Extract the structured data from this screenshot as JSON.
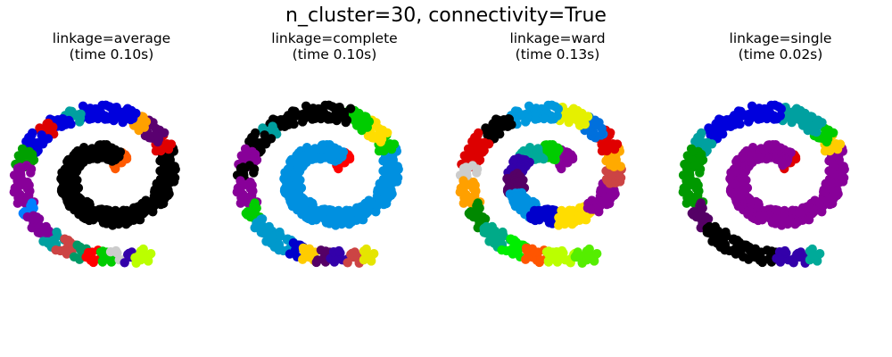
{
  "title": "n_cluster=30, connectivity=True",
  "chart_data": [
    {
      "type": "scatter",
      "title_line1": "linkage=average",
      "title_line2": "(time 0.10s)",
      "segments": [
        {
          "color": "#ff5a00",
          "t": [
            0.0,
            0.03
          ]
        },
        {
          "color": "#000000",
          "t": [
            0.03,
            0.56
          ]
        },
        {
          "color": "#e00000",
          "t": [
            0.56,
            0.58
          ]
        },
        {
          "color": "#5a0070",
          "t": [
            0.58,
            0.61
          ]
        },
        {
          "color": "#ffa000",
          "t": [
            0.61,
            0.63
          ]
        },
        {
          "color": "#0000dd",
          "t": [
            0.63,
            0.7
          ]
        },
        {
          "color": "#00a0a0",
          "t": [
            0.7,
            0.715
          ]
        },
        {
          "color": "#0000dd",
          "t": [
            0.715,
            0.735
          ]
        },
        {
          "color": "#dd0000",
          "t": [
            0.735,
            0.755
          ]
        },
        {
          "color": "#0000dd",
          "t": [
            0.755,
            0.78
          ]
        },
        {
          "color": "#00a000",
          "t": [
            0.78,
            0.8
          ]
        },
        {
          "color": "#880099",
          "t": [
            0.8,
            0.85
          ]
        },
        {
          "color": "#0080ff",
          "t": [
            0.85,
            0.865
          ]
        },
        {
          "color": "#800099",
          "t": [
            0.865,
            0.895
          ]
        },
        {
          "color": "#00a0a0",
          "t": [
            0.895,
            0.91
          ]
        },
        {
          "color": "#cc4444",
          "t": [
            0.91,
            0.925
          ]
        },
        {
          "color": "#009966",
          "t": [
            0.925,
            0.94
          ]
        },
        {
          "color": "#ff0000",
          "t": [
            0.94,
            0.95
          ]
        },
        {
          "color": "#00cc00",
          "t": [
            0.95,
            0.965
          ]
        },
        {
          "color": "#cccccc",
          "t": [
            0.965,
            0.975
          ]
        },
        {
          "color": "#3300aa",
          "t": [
            0.975,
            0.985
          ]
        },
        {
          "color": "#bbff00",
          "t": [
            0.985,
            1.0
          ]
        }
      ]
    },
    {
      "type": "scatter",
      "title_line1": "linkage=complete",
      "title_line2": "(time 0.10s)",
      "segments": [
        {
          "color": "#ff0000",
          "t": [
            0.0,
            0.03
          ]
        },
        {
          "color": "#0090e0",
          "t": [
            0.03,
            0.56
          ]
        },
        {
          "color": "#00cc00",
          "t": [
            0.56,
            0.58
          ]
        },
        {
          "color": "#ffdd00",
          "t": [
            0.58,
            0.61
          ]
        },
        {
          "color": "#00cc00",
          "t": [
            0.61,
            0.64
          ]
        },
        {
          "color": "#000000",
          "t": [
            0.64,
            0.74
          ]
        },
        {
          "color": "#00a0a0",
          "t": [
            0.74,
            0.755
          ]
        },
        {
          "color": "#000000",
          "t": [
            0.755,
            0.78
          ]
        },
        {
          "color": "#880099",
          "t": [
            0.78,
            0.8
          ]
        },
        {
          "color": "#000000",
          "t": [
            0.8,
            0.82
          ]
        },
        {
          "color": "#880099",
          "t": [
            0.82,
            0.85
          ]
        },
        {
          "color": "#00cc00",
          "t": [
            0.85,
            0.87
          ]
        },
        {
          "color": "#0099cc",
          "t": [
            0.87,
            0.92
          ]
        },
        {
          "color": "#0000cc",
          "t": [
            0.92,
            0.93
          ]
        },
        {
          "color": "#ffcc00",
          "t": [
            0.93,
            0.945
          ]
        },
        {
          "color": "#550066",
          "t": [
            0.945,
            0.96
          ]
        },
        {
          "color": "#3300aa",
          "t": [
            0.96,
            0.975
          ]
        },
        {
          "color": "#cc4444",
          "t": [
            0.975,
            0.99
          ]
        },
        {
          "color": "#e5e500",
          "t": [
            0.99,
            1.0
          ]
        }
      ]
    },
    {
      "type": "scatter",
      "title_line1": "linkage=ward",
      "title_line2": "(time 0.13s)",
      "segments": [
        {
          "color": "#880099",
          "t": [
            0.0,
            0.06
          ]
        },
        {
          "color": "#00cc00",
          "t": [
            0.06,
            0.12
          ]
        },
        {
          "color": "#00aa99",
          "t": [
            0.12,
            0.17
          ]
        },
        {
          "color": "#3300aa",
          "t": [
            0.17,
            0.22
          ]
        },
        {
          "color": "#550066",
          "t": [
            0.22,
            0.27
          ]
        },
        {
          "color": "#0090e0",
          "t": [
            0.27,
            0.33
          ]
        },
        {
          "color": "#0000cc",
          "t": [
            0.33,
            0.38
          ]
        },
        {
          "color": "#ffdd00",
          "t": [
            0.38,
            0.44
          ]
        },
        {
          "color": "#880099",
          "t": [
            0.44,
            0.5
          ]
        },
        {
          "color": "#cc4444",
          "t": [
            0.5,
            0.53
          ]
        },
        {
          "color": "#ffaa00",
          "t": [
            0.53,
            0.56
          ]
        },
        {
          "color": "#e00000",
          "t": [
            0.56,
            0.59
          ]
        },
        {
          "color": "#0070dd",
          "t": [
            0.59,
            0.62
          ]
        },
        {
          "color": "#e5f000",
          "t": [
            0.62,
            0.66
          ]
        },
        {
          "color": "#0099dd",
          "t": [
            0.66,
            0.72
          ]
        },
        {
          "color": "#000000",
          "t": [
            0.72,
            0.76
          ]
        },
        {
          "color": "#dd0000",
          "t": [
            0.76,
            0.8
          ]
        },
        {
          "color": "#cccccc",
          "t": [
            0.8,
            0.82
          ]
        },
        {
          "color": "#ffa000",
          "t": [
            0.82,
            0.85
          ]
        },
        {
          "color": "#008800",
          "t": [
            0.85,
            0.88
          ]
        },
        {
          "color": "#00aa88",
          "t": [
            0.88,
            0.91
          ]
        },
        {
          "color": "#00ee00",
          "t": [
            0.91,
            0.93
          ]
        },
        {
          "color": "#ff5500",
          "t": [
            0.93,
            0.95
          ]
        },
        {
          "color": "#bbff00",
          "t": [
            0.95,
            0.98
          ]
        },
        {
          "color": "#55ee00",
          "t": [
            0.98,
            1.0
          ]
        }
      ]
    },
    {
      "type": "scatter",
      "title_line1": "linkage=single",
      "title_line2": "(time 0.02s)",
      "segments": [
        {
          "color": "#e00000",
          "t": [
            0.0,
            0.02
          ]
        },
        {
          "color": "#880099",
          "t": [
            0.02,
            0.56
          ]
        },
        {
          "color": "#ffcc00",
          "t": [
            0.56,
            0.58
          ]
        },
        {
          "color": "#00cc00",
          "t": [
            0.58,
            0.6
          ]
        },
        {
          "color": "#00a0a0",
          "t": [
            0.6,
            0.66
          ]
        },
        {
          "color": "#0000dd",
          "t": [
            0.66,
            0.76
          ]
        },
        {
          "color": "#00a0a0",
          "t": [
            0.76,
            0.78
          ]
        },
        {
          "color": "#009900",
          "t": [
            0.78,
            0.85
          ]
        },
        {
          "color": "#550066",
          "t": [
            0.85,
            0.88
          ]
        },
        {
          "color": "#000000",
          "t": [
            0.88,
            0.96
          ]
        },
        {
          "color": "#3300aa",
          "t": [
            0.96,
            0.99
          ]
        },
        {
          "color": "#00aa99",
          "t": [
            0.99,
            1.0
          ]
        }
      ]
    }
  ]
}
